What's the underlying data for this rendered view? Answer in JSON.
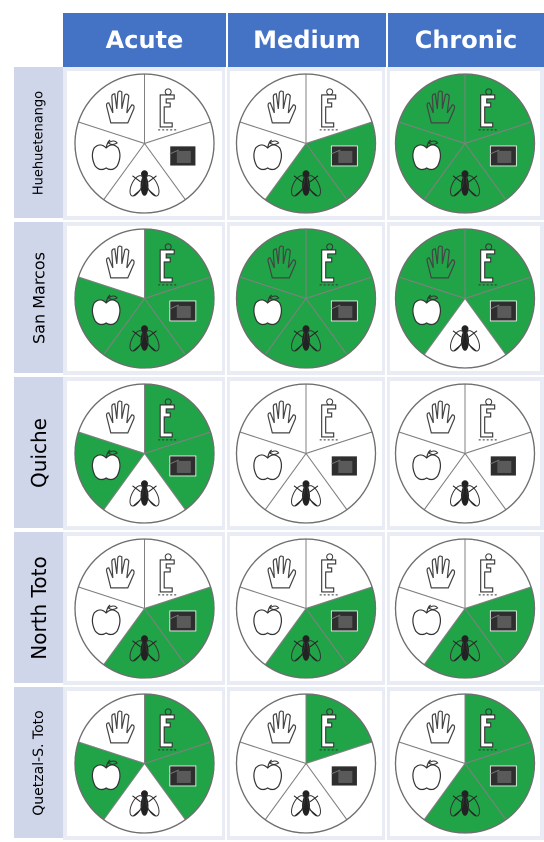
{
  "columns": [
    "Acute",
    "Medium",
    "Chronic"
  ],
  "segment_order": [
    "hand",
    "tap",
    "latrine",
    "fly",
    "apple"
  ],
  "colors": {
    "header_bg": "#4472c4",
    "row_label_bg": "#cfd6ea",
    "highlight": "#21a347",
    "neutral": "#ffffff"
  },
  "rows": [
    {
      "label": "Huehuetenango",
      "cells": [
        {
          "hand": false,
          "tap": false,
          "latrine": false,
          "fly": false,
          "apple": false
        },
        {
          "hand": false,
          "tap": false,
          "latrine": true,
          "fly": true,
          "apple": false
        },
        {
          "hand": true,
          "tap": true,
          "latrine": true,
          "fly": true,
          "apple": true
        }
      ]
    },
    {
      "label": "San Marcos",
      "cells": [
        {
          "hand": false,
          "tap": true,
          "latrine": true,
          "fly": true,
          "apple": true
        },
        {
          "hand": true,
          "tap": true,
          "latrine": true,
          "fly": true,
          "apple": true
        },
        {
          "hand": true,
          "tap": true,
          "latrine": true,
          "fly": false,
          "apple": true
        }
      ]
    },
    {
      "label": "Quiche",
      "cells": [
        {
          "hand": false,
          "tap": true,
          "latrine": true,
          "fly": false,
          "apple": true
        },
        {
          "hand": false,
          "tap": false,
          "latrine": false,
          "fly": false,
          "apple": false
        },
        {
          "hand": false,
          "tap": false,
          "latrine": false,
          "fly": false,
          "apple": false
        }
      ]
    },
    {
      "label": "North Toto",
      "cells": [
        {
          "hand": false,
          "tap": false,
          "latrine": true,
          "fly": true,
          "apple": false
        },
        {
          "hand": false,
          "tap": false,
          "latrine": true,
          "fly": true,
          "apple": false
        },
        {
          "hand": false,
          "tap": false,
          "latrine": true,
          "fly": true,
          "apple": false
        }
      ]
    },
    {
      "label": "Quetzal-S. Toto",
      "cells": [
        {
          "hand": false,
          "tap": true,
          "latrine": true,
          "fly": false,
          "apple": true
        },
        {
          "hand": false,
          "tap": true,
          "latrine": false,
          "fly": false,
          "apple": false
        },
        {
          "hand": false,
          "tap": true,
          "latrine": true,
          "fly": true,
          "apple": false
        }
      ]
    }
  ]
}
